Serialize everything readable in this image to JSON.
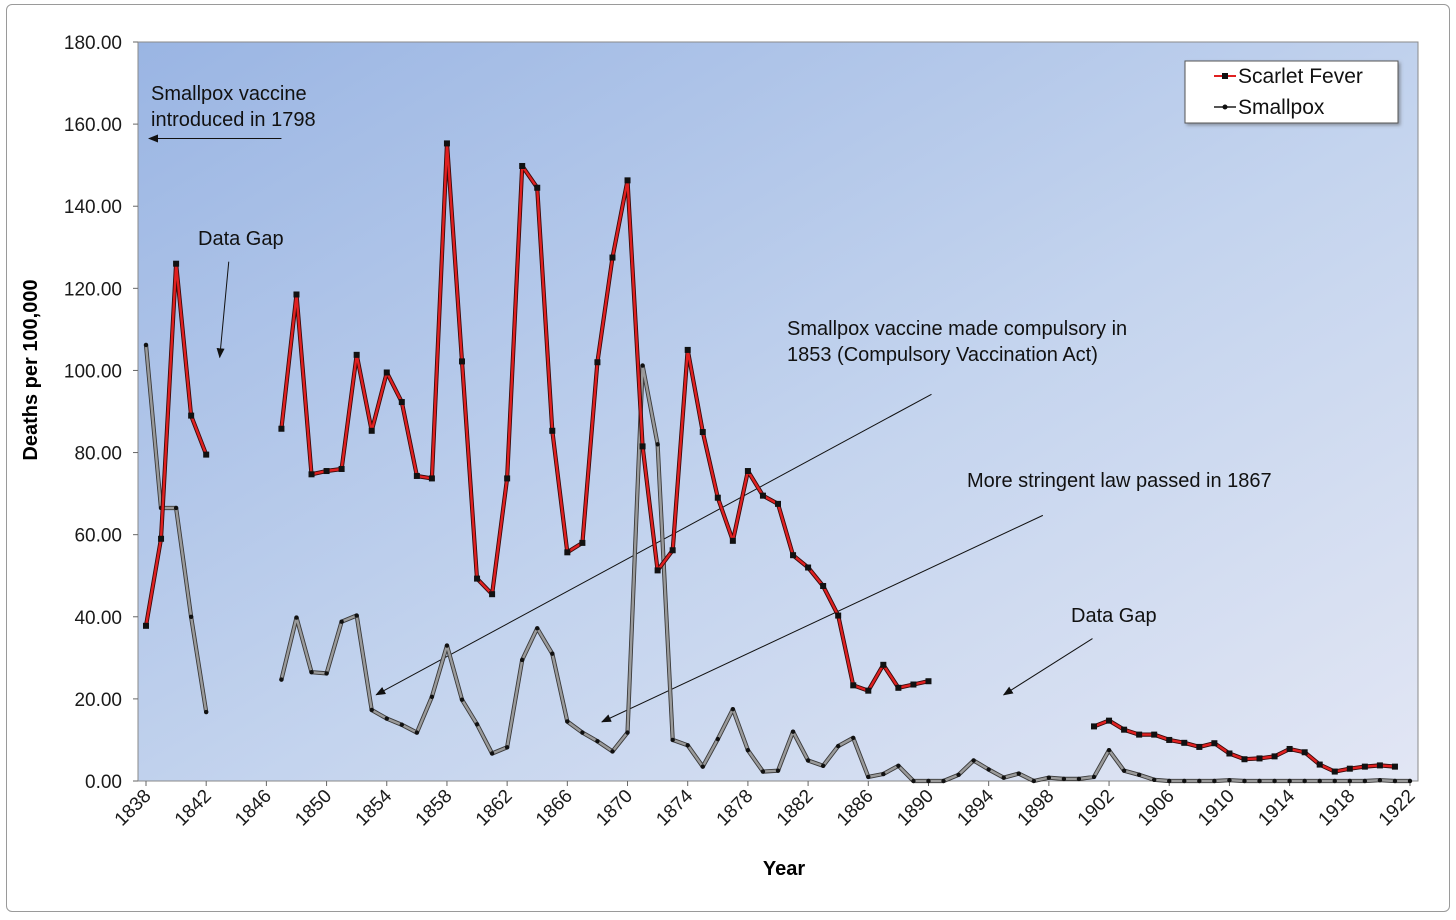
{
  "chart_data": {
    "type": "line",
    "xlabel": "Year",
    "ylabel": "Deaths per 100,000",
    "xlim": [
      1838,
      1922
    ],
    "ylim": [
      0,
      180
    ],
    "x_ticks": [
      1838,
      1842,
      1846,
      1850,
      1854,
      1858,
      1862,
      1866,
      1870,
      1874,
      1878,
      1882,
      1886,
      1890,
      1894,
      1898,
      1902,
      1906,
      1910,
      1914,
      1918,
      1922
    ],
    "y_ticks": [
      "0.00",
      "20.00",
      "40.00",
      "60.00",
      "80.00",
      "100.00",
      "120.00",
      "140.00",
      "160.00",
      "180.00"
    ],
    "legend_position": "top-right",
    "grid": false,
    "series": [
      {
        "name": "Scarlet Fever",
        "color": "#e02020",
        "marker": "square",
        "points": [
          [
            1838,
            37.8
          ],
          [
            1839,
            59
          ],
          [
            1840,
            126
          ],
          [
            1841,
            89
          ],
          [
            1842,
            79.5
          ],
          [
            1847,
            85.8
          ],
          [
            1848,
            118.5
          ],
          [
            1849,
            74.7
          ],
          [
            1850,
            75.5
          ],
          [
            1851,
            76
          ],
          [
            1852,
            103.8
          ],
          [
            1853,
            85.3
          ],
          [
            1854,
            99.5
          ],
          [
            1855,
            92.3
          ],
          [
            1856,
            74.3
          ],
          [
            1857,
            73.7
          ],
          [
            1858,
            155.3
          ],
          [
            1859,
            102.2
          ],
          [
            1860,
            49.3
          ],
          [
            1861,
            45.5
          ],
          [
            1862,
            73.7
          ],
          [
            1863,
            149.8
          ],
          [
            1864,
            144.5
          ],
          [
            1865,
            85.3
          ],
          [
            1866,
            55.7
          ],
          [
            1867,
            58
          ],
          [
            1868,
            102
          ],
          [
            1869,
            127.5
          ],
          [
            1870,
            146.3
          ],
          [
            1871,
            81.5
          ],
          [
            1872,
            51.3
          ],
          [
            1873,
            56.2
          ],
          [
            1874,
            105
          ],
          [
            1875,
            85
          ],
          [
            1876,
            69
          ],
          [
            1877,
            58.5
          ],
          [
            1878,
            75.5
          ],
          [
            1879,
            69.5
          ],
          [
            1880,
            67.5
          ],
          [
            1881,
            55
          ],
          [
            1882,
            52
          ],
          [
            1883,
            47.5
          ],
          [
            1884,
            40.3
          ],
          [
            1885,
            23.3
          ],
          [
            1886,
            22
          ],
          [
            1887,
            28.3
          ],
          [
            1888,
            22.7
          ],
          [
            1889,
            23.5
          ],
          [
            1890,
            24.3
          ],
          [
            1901,
            13.3
          ],
          [
            1902,
            14.7
          ],
          [
            1903,
            12.5
          ],
          [
            1904,
            11.3
          ],
          [
            1905,
            11.3
          ],
          [
            1906,
            10
          ],
          [
            1907,
            9.3
          ],
          [
            1908,
            8.3
          ],
          [
            1909,
            9.2
          ],
          [
            1910,
            6.7
          ],
          [
            1911,
            5.3
          ],
          [
            1912,
            5.5
          ],
          [
            1913,
            6
          ],
          [
            1914,
            7.8
          ],
          [
            1915,
            7
          ],
          [
            1916,
            4
          ],
          [
            1917,
            2.3
          ],
          [
            1918,
            3
          ],
          [
            1919,
            3.5
          ],
          [
            1920,
            3.8
          ],
          [
            1921,
            3.5
          ]
        ]
      },
      {
        "name": "Smallpox",
        "color": "#555555",
        "marker": "dot",
        "points": [
          [
            1838,
            106.2
          ],
          [
            1839,
            66.5
          ],
          [
            1840,
            66.5
          ],
          [
            1841,
            40
          ],
          [
            1842,
            16.8
          ],
          [
            1847,
            24.7
          ],
          [
            1848,
            39.8
          ],
          [
            1849,
            26.5
          ],
          [
            1850,
            26.2
          ],
          [
            1851,
            38.8
          ],
          [
            1852,
            40.3
          ],
          [
            1853,
            17.3
          ],
          [
            1854,
            15.2
          ],
          [
            1855,
            13.7
          ],
          [
            1856,
            11.8
          ],
          [
            1857,
            20.5
          ],
          [
            1858,
            33
          ],
          [
            1859,
            19.8
          ],
          [
            1860,
            13.8
          ],
          [
            1861,
            6.7
          ],
          [
            1862,
            8.2
          ],
          [
            1863,
            29.5
          ],
          [
            1864,
            37.2
          ],
          [
            1865,
            31
          ],
          [
            1866,
            14.5
          ],
          [
            1867,
            11.8
          ],
          [
            1868,
            9.7
          ],
          [
            1869,
            7.2
          ],
          [
            1870,
            11.8
          ],
          [
            1871,
            101.2
          ],
          [
            1872,
            82
          ],
          [
            1873,
            10
          ],
          [
            1874,
            8.7
          ],
          [
            1875,
            3.5
          ],
          [
            1876,
            10.2
          ],
          [
            1877,
            17.5
          ],
          [
            1878,
            7.5
          ],
          [
            1879,
            2.3
          ],
          [
            1880,
            2.5
          ],
          [
            1881,
            12
          ],
          [
            1882,
            5
          ],
          [
            1883,
            3.7
          ],
          [
            1884,
            8.5
          ],
          [
            1885,
            10.5
          ],
          [
            1886,
            1
          ],
          [
            1887,
            1.7
          ],
          [
            1888,
            3.7
          ],
          [
            1889,
            0
          ],
          [
            1890,
            0
          ],
          [
            1891,
            0
          ],
          [
            1892,
            1.5
          ],
          [
            1893,
            5
          ],
          [
            1894,
            2.8
          ],
          [
            1895,
            0.8
          ],
          [
            1896,
            1.8
          ],
          [
            1897,
            0
          ],
          [
            1898,
            0.8
          ],
          [
            1899,
            0.5
          ],
          [
            1900,
            0.5
          ],
          [
            1901,
            1
          ],
          [
            1902,
            7.5
          ],
          [
            1903,
            2.5
          ],
          [
            1904,
            1.5
          ],
          [
            1905,
            0.3
          ],
          [
            1906,
            0
          ],
          [
            1907,
            0
          ],
          [
            1908,
            0
          ],
          [
            1909,
            0
          ],
          [
            1910,
            0.2
          ],
          [
            1911,
            0
          ],
          [
            1912,
            0
          ],
          [
            1913,
            0
          ],
          [
            1914,
            0
          ],
          [
            1915,
            0
          ],
          [
            1916,
            0
          ],
          [
            1917,
            0
          ],
          [
            1918,
            0
          ],
          [
            1919,
            0
          ],
          [
            1920,
            0.2
          ],
          [
            1921,
            0
          ],
          [
            1922,
            0
          ]
        ]
      }
    ],
    "annotations": [
      {
        "lines": [
          "Smallpox vaccine",
          "introduced in 1798"
        ],
        "arrow": {
          "from": [
            1847.0,
            156.5
          ],
          "to": [
            1838.2,
            156.5
          ]
        }
      },
      {
        "lines": [
          "Data Gap"
        ],
        "arrow": {
          "from": [
            1843.5,
            126.5
          ],
          "to": [
            1842.9,
            103.2
          ]
        }
      },
      {
        "lines": [
          "Smallpox vaccine made compulsory in",
          "1853 (Compulsory Vaccination Act)"
        ],
        "arrow": {
          "from": [
            1890.2,
            94.2
          ],
          "to": [
            1853.3,
            21.0
          ]
        }
      },
      {
        "lines": [
          "More stringent law passed in 1867"
        ],
        "arrow": {
          "from": [
            1897.6,
            64.7
          ],
          "to": [
            1868.3,
            14.4
          ]
        }
      },
      {
        "lines": [
          "Data Gap"
        ],
        "arrow": {
          "from": [
            1900.9,
            34.7
          ],
          "to": [
            1895.0,
            21.0
          ]
        }
      }
    ]
  }
}
